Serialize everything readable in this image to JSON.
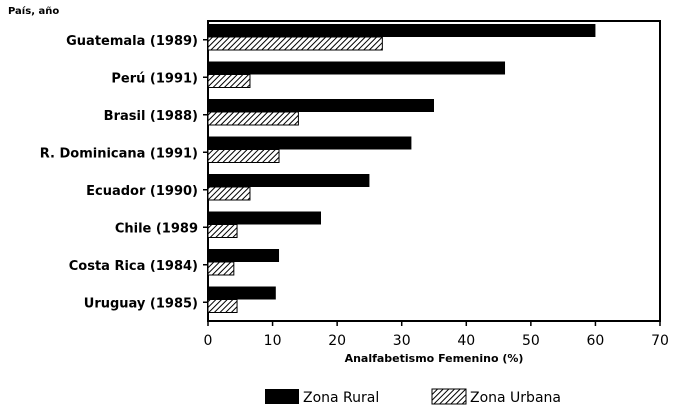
{
  "chart_data": {
    "type": "bar",
    "orientation": "horizontal",
    "title": "",
    "y_header": "País, año",
    "xlabel": "Analfabetismo Femenino (%)",
    "xlim": [
      0,
      70
    ],
    "xticks": [
      "0",
      "10",
      "20",
      "30",
      "40",
      "50",
      "60",
      "70"
    ],
    "grid": false,
    "legend_position": "bottom",
    "categories": [
      "Guatemala (1989)",
      "Perú (1991)",
      "Brasil (1988)",
      "R. Dominicana (1991)",
      "Ecuador (1990)",
      "Chile (1989",
      "Costa Rica (1984)",
      "Uruguay (1985)"
    ],
    "series": [
      {
        "name": "Zona Rural",
        "values": [
          60,
          46,
          35,
          31.5,
          25,
          17.5,
          11,
          10.5
        ]
      },
      {
        "name": "Zona Urbana",
        "values": [
          27,
          6.5,
          14,
          11,
          6.5,
          4.5,
          4,
          4.5
        ]
      }
    ],
    "colors": {
      "rural": "#000000",
      "urbana_hatch": "#000000",
      "background": "#ffffff"
    }
  }
}
